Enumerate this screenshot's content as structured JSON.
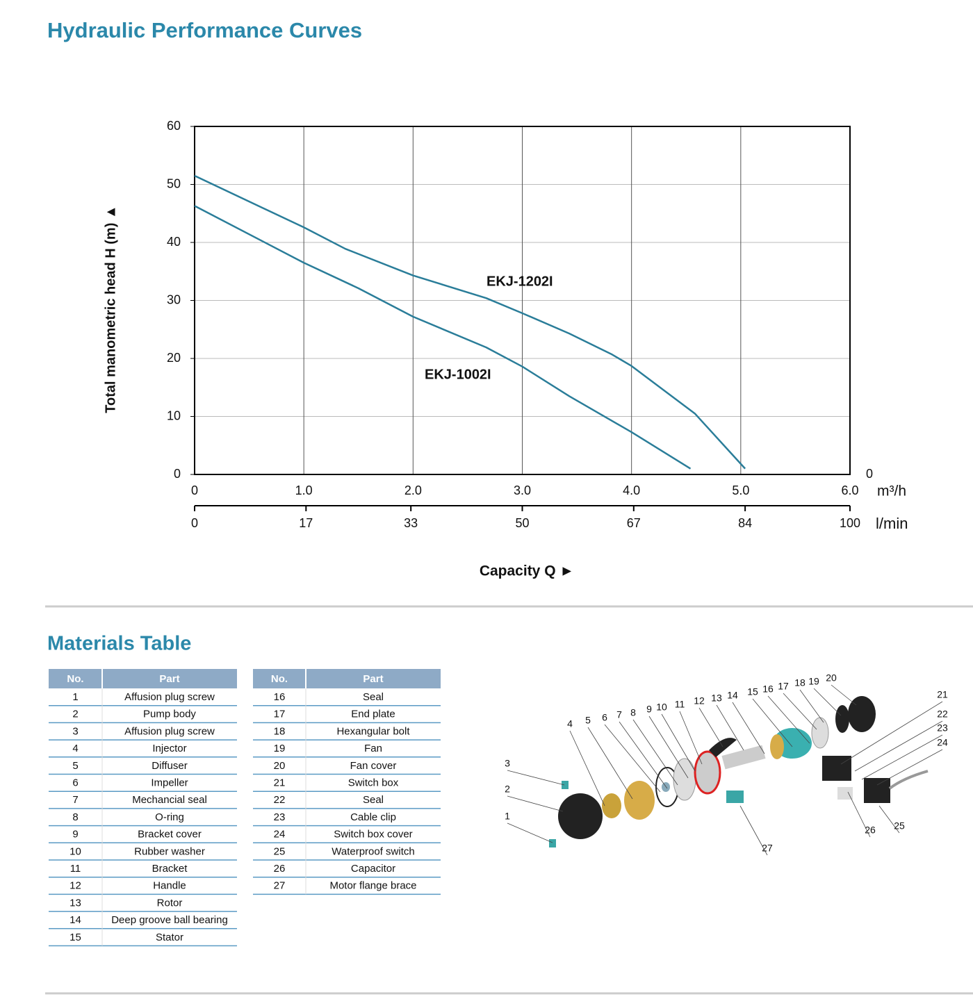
{
  "title": "Hydraulic Performance Curves",
  "chart_data": {
    "type": "line",
    "ylabel": "Total manometric head H (m) ▲",
    "xlabel": "Capacity Q ►",
    "x_unit": "m³/h",
    "x2_unit": "l/min",
    "xlim": [
      0,
      6
    ],
    "xticks": [
      0,
      {
        "value": 1,
        "label": "1.0"
      },
      {
        "value": 2,
        "label": "2.0"
      },
      {
        "value": 3,
        "label": "3.0"
      },
      {
        "value": 4,
        "label": "4.0"
      },
      {
        "value": 5,
        "label": "5.0"
      },
      {
        "value": 6,
        "label": "6.0"
      }
    ],
    "x2lim": [
      0,
      100
    ],
    "x2ticks": [
      0,
      17,
      33,
      50,
      67,
      84,
      100
    ],
    "ylim": [
      0,
      60
    ],
    "yticks": [
      0,
      10,
      20,
      30,
      40,
      50,
      60
    ],
    "y2lim": [
      0,
      60
    ],
    "y2ticks": [
      0
    ],
    "grid": true,
    "series": [
      {
        "name": "EKJ-1202I",
        "color": "#2a7d99",
        "x": [
          0,
          1,
          1.38,
          2,
          2.67,
          3,
          3.43,
          3.82,
          4,
          4.58,
          5.04
        ],
        "values": [
          51.5,
          42.6,
          38.9,
          34.3,
          30.4,
          27.8,
          24.3,
          20.7,
          18.7,
          10.5,
          1
        ]
      },
      {
        "name": "EKJ-1002I",
        "color": "#2a7d99",
        "x": [
          0,
          1,
          1.5,
          2,
          2.67,
          3,
          3.43,
          4,
          4.54
        ],
        "values": [
          46.3,
          36.5,
          32.1,
          27.2,
          21.9,
          18.6,
          13.5,
          7.3,
          1
        ]
      }
    ]
  },
  "materials_title": "Materials Table",
  "tables": [
    {
      "header": [
        "No.",
        "Part"
      ],
      "rows": [
        [
          1,
          "Affusion plug screw"
        ],
        [
          2,
          "Pump body"
        ],
        [
          3,
          "Affusion plug screw"
        ],
        [
          4,
          "Injector"
        ],
        [
          5,
          "Diffuser"
        ],
        [
          6,
          "Impeller"
        ],
        [
          7,
          "Mechancial seal"
        ],
        [
          8,
          "O-ring"
        ],
        [
          9,
          "Bracket cover"
        ],
        [
          10,
          "Rubber washer"
        ],
        [
          11,
          "Bracket"
        ],
        [
          12,
          "Handle"
        ],
        [
          13,
          "Rotor"
        ],
        [
          14,
          "Deep groove ball bearing"
        ],
        [
          15,
          "Stator"
        ]
      ]
    },
    {
      "header": [
        "No.",
        "Part"
      ],
      "rows": [
        [
          16,
          "Seal"
        ],
        [
          17,
          "End plate"
        ],
        [
          18,
          "Hexangular bolt"
        ],
        [
          19,
          "Fan"
        ],
        [
          20,
          "Fan cover"
        ],
        [
          21,
          "Switch box"
        ],
        [
          22,
          "Seal"
        ],
        [
          23,
          "Cable clip"
        ],
        [
          24,
          "Switch box cover"
        ],
        [
          25,
          "Waterproof switch"
        ],
        [
          26,
          "Capacitor"
        ],
        [
          27,
          "Motor flange brace"
        ]
      ]
    }
  ],
  "diagram": {
    "callouts": [
      "1",
      "2",
      "3",
      "4",
      "5",
      "6",
      "7",
      "8",
      "9",
      "10",
      "11",
      "12",
      "13",
      "14",
      "15",
      "16",
      "17",
      "18",
      "19",
      "20",
      "21",
      "22",
      "23",
      "24",
      "25",
      "26",
      "27"
    ]
  }
}
